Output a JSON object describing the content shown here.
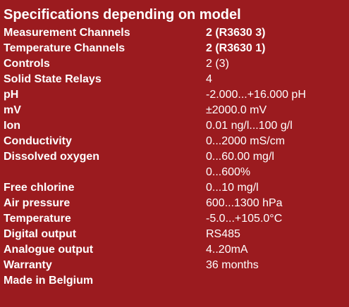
{
  "title": "Specifications depending on model",
  "rows": [
    {
      "label": "Measurement Channels",
      "value": "2 (R3630  3)",
      "bold": true
    },
    {
      "label": "Temperature Channels",
      "value": "2 (R3630  1)",
      "bold": true
    },
    {
      "label": "Controls",
      "value": "2 (3)",
      "bold": false
    },
    {
      "label": "Solid State Relays",
      "value": "4",
      "bold": false
    },
    {
      "label": "pH",
      "value": "-2.000...+16.000 pH",
      "bold": false
    },
    {
      "label": "mV",
      "value": "±2000.0 mV",
      "bold": false
    },
    {
      "label": "Ion",
      "value": "0.01 ng/l...100 g/l",
      "bold": false
    },
    {
      "label": "Conductivity",
      "value": "0...2000 mS/cm",
      "bold": false
    },
    {
      "label": "Dissolved oxygen",
      "value": "0...60.00 mg/l",
      "bold": false
    },
    {
      "label": "",
      "value": "0...600%",
      "bold": false
    },
    {
      "label": "Free chlorine",
      "value": "0...10 mg/l",
      "bold": false
    },
    {
      "label": "Air pressure",
      "value": "600...1300 hPa",
      "bold": false
    },
    {
      "label": "Temperature",
      "value": "-5.0...+105.0°C",
      "bold": false
    },
    {
      "label": "Digital output",
      "value": "RS485",
      "bold": false
    },
    {
      "label": "Analogue output",
      "value": "4..20mA",
      "bold": false
    },
    {
      "label": "Warranty",
      "value": "36 months",
      "bold": false
    },
    {
      "label": "Made in Belgium",
      "value": "",
      "bold": false
    }
  ]
}
